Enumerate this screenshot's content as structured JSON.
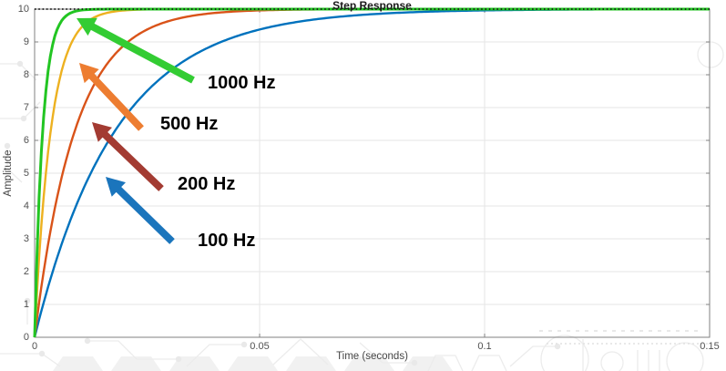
{
  "chart_data": {
    "type": "line",
    "title": "Step Response",
    "xlabel": "Time (seconds)",
    "ylabel": "Amplitude",
    "xlim": [
      0,
      0.15
    ],
    "ylim": [
      0,
      10
    ],
    "xticks": [
      0,
      0.05,
      0.1,
      0.15
    ],
    "xticklabels": [
      "0",
      "0.05",
      "0.1",
      "0.15"
    ],
    "yticks": [
      0,
      1,
      2,
      3,
      4,
      5,
      6,
      7,
      8,
      9,
      10
    ],
    "yticklabels": [
      "0",
      "1",
      "2",
      "3",
      "4",
      "5",
      "6",
      "7",
      "8",
      "9",
      "10"
    ],
    "grid": true,
    "legend": "none",
    "steady_state_line": {
      "value": 10,
      "style": "dotted",
      "color": "#1a1a1a"
    },
    "sample_t_s": [
      0,
      0.005,
      0.01,
      0.02,
      0.03,
      0.05,
      0.1,
      0.15
    ],
    "series": [
      {
        "name": "100 Hz",
        "color": "#0072BD",
        "dc_gain": 10,
        "tau_s": 0.018,
        "sample_y": [
          0,
          2.43,
          4.26,
          6.71,
          8.11,
          9.38,
          9.96,
          10
        ]
      },
      {
        "name": "200 Hz",
        "color": "#D95319",
        "dc_gain": 10,
        "tau_s": 0.009,
        "sample_y": [
          0,
          4.26,
          6.71,
          8.92,
          9.64,
          9.96,
          10,
          10
        ]
      },
      {
        "name": "500 Hz",
        "color": "#EDB120",
        "dc_gain": 10,
        "tau_s": 0.0036,
        "sample_y": [
          0,
          7.51,
          9.38,
          9.96,
          10,
          10,
          10,
          10
        ]
      },
      {
        "name": "1000 Hz",
        "color": "#22C522",
        "dc_gain": 10,
        "tau_s": 0.0018,
        "sample_y": [
          0,
          9.38,
          9.96,
          10,
          10,
          10,
          10,
          10
        ]
      }
    ],
    "annotations": [
      {
        "label": "1000 Hz",
        "arrow_color": "#33CC33"
      },
      {
        "label": "500 Hz",
        "arrow_color": "#ED7D31"
      },
      {
        "label": "200 Hz",
        "arrow_color": "#A33B32"
      },
      {
        "label": "100 Hz",
        "arrow_color": "#1B75BC"
      }
    ],
    "axis_color": "#808080",
    "grid_color": "#e6e6e6",
    "tick_label_color": "#505050",
    "background_watermark_color": "#ececec"
  }
}
